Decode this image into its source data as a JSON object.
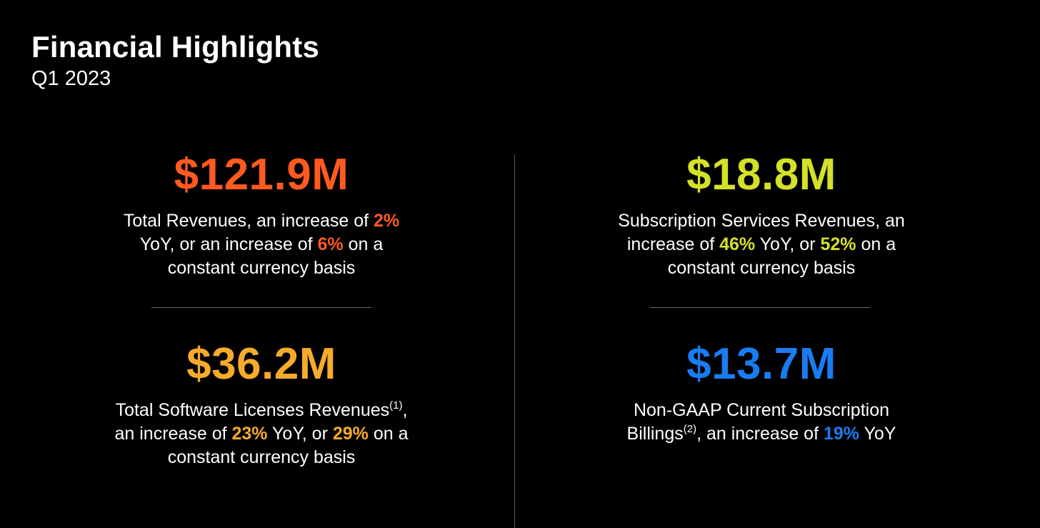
{
  "header": {
    "title": "Financial Highlights",
    "subtitle": "Q1 2023"
  },
  "colors": {
    "background": "#000000",
    "orange": "#ff5a1f",
    "lime": "#d4e127",
    "amber": "#f7ab2b",
    "blue": "#1a7cf2"
  },
  "metrics": [
    {
      "value": "$121.9M",
      "color": "#ff5a1f",
      "desc": {
        "t1": "Total Revenues, an increase of ",
        "h1": "2%",
        "t2": " YoY, or an increase of ",
        "h2": "6%",
        "t3": " on a constant currency basis"
      }
    },
    {
      "value": "$18.8M",
      "color": "#d4e127",
      "desc": {
        "t1": "Subscription Services Revenues, an increase of ",
        "h1": "46%",
        "t2": " YoY, or ",
        "h2": "52%",
        "t3": " on a constant currency basis"
      }
    },
    {
      "value": "$36.2M",
      "color": "#f7ab2b",
      "desc": {
        "t1": "Total Software Licenses Revenues",
        "sup": "(1)",
        "t2": ", an increase of ",
        "h1": "23%",
        "t3": " YoY, or ",
        "h2": "29%",
        "t4": " on a constant currency basis"
      }
    },
    {
      "value": "$13.7M",
      "color": "#1a7cf2",
      "desc": {
        "t1": "Non-GAAP Current Subscription Billings",
        "sup": "(2)",
        "t2": ", an increase of ",
        "h1": "19%",
        "t3": " YoY"
      }
    }
  ]
}
